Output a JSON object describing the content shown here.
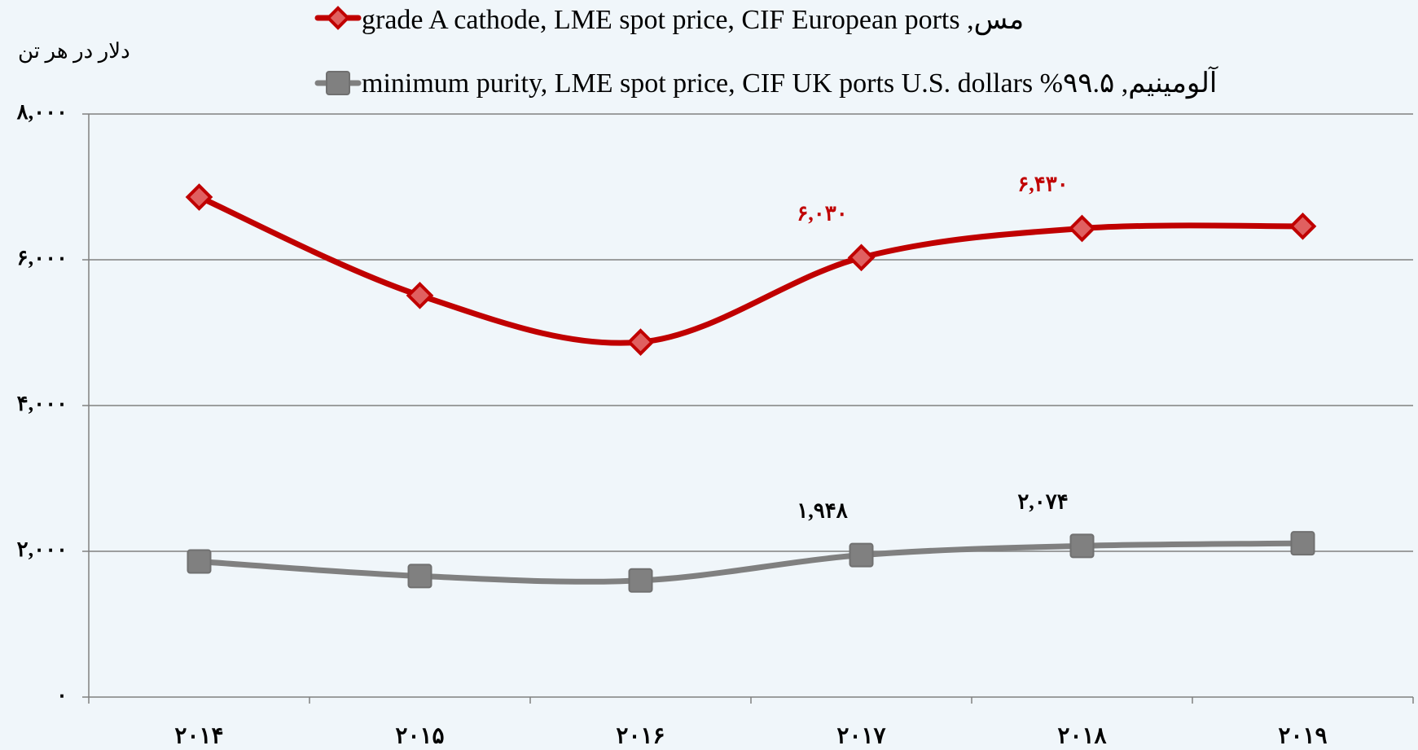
{
  "chart_data": {
    "type": "line",
    "y_label": "دلار در هر تن",
    "categories": [
      "۲۰۱۴",
      "۲۰۱۵",
      "۲۰۱۶",
      "۲۰۱۷",
      "۲۰۱۸",
      "۲۰۱۹"
    ],
    "series": [
      {
        "name": "مس, grade A cathode, LME spot price, CIF European ports",
        "color": "#c00000",
        "marker": "diamond",
        "values": [
          6860,
          5510,
          4870,
          6030,
          6430,
          6460
        ],
        "value_labels": [
          null,
          null,
          null,
          "۶,۰۳۰",
          "۶,۴۳۰",
          null
        ]
      },
      {
        "name": "آلومینیم, ۹۹.۵% minimum purity, LME spot price, CIF UK ports U.S. dollars",
        "color": "#808080",
        "marker": "square",
        "values": [
          1860,
          1660,
          1600,
          1948,
          2074,
          2110
        ],
        "value_labels": [
          null,
          null,
          null,
          "۱,۹۴۸",
          "۲,۰۷۴",
          null
        ]
      }
    ],
    "ylim": [
      0,
      8000
    ],
    "yticks": [
      {
        "value": 0,
        "label": "۰"
      },
      {
        "value": 2000,
        "label": "۲,۰۰۰"
      },
      {
        "value": 4000,
        "label": "۴,۰۰۰"
      },
      {
        "value": 6000,
        "label": "۶,۰۰۰"
      },
      {
        "value": 8000,
        "label": "۸,۰۰۰"
      }
    ],
    "grid": true
  }
}
